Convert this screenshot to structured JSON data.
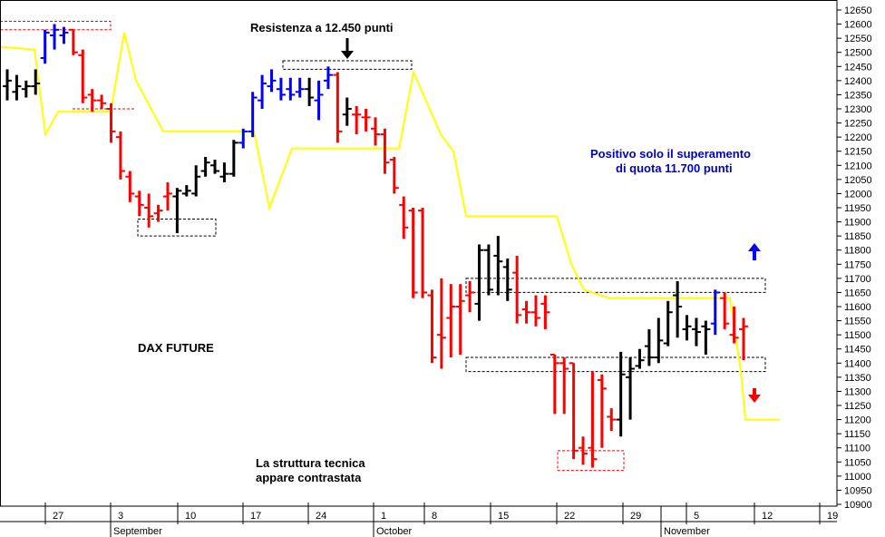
{
  "chart_data": {
    "type": "ohlc",
    "title": "DAX FUTURE",
    "y_axis": {
      "min": 10900,
      "max": 12650,
      "step": 50,
      "ticks": [
        12650,
        12600,
        12550,
        12500,
        12450,
        12400,
        12350,
        12300,
        12250,
        12200,
        12150,
        12100,
        12050,
        12000,
        11950,
        11900,
        11850,
        11800,
        11750,
        11700,
        11650,
        11600,
        11550,
        11500,
        11450,
        11400,
        11350,
        11300,
        11250,
        11200,
        11150,
        11100,
        11050,
        11000,
        10950,
        10900
      ]
    },
    "x_axis": {
      "day_labels": [
        "27",
        "3",
        "10",
        "17",
        "24",
        "1",
        "8",
        "15",
        "22",
        "29",
        "5",
        "12",
        "19"
      ],
      "month_labels": [
        "September",
        "October",
        "November"
      ]
    },
    "bars": [
      {
        "o": 12380,
        "h": 12440,
        "l": 12330,
        "c": 12400,
        "color": "black"
      },
      {
        "o": 12360,
        "h": 12420,
        "l": 12330,
        "c": 12380,
        "color": "black"
      },
      {
        "o": 12370,
        "h": 12400,
        "l": 12340,
        "c": 12380,
        "color": "black"
      },
      {
        "o": 12380,
        "h": 12440,
        "l": 12350,
        "c": 12390,
        "color": "black"
      },
      {
        "o": 12480,
        "h": 12580,
        "l": 12460,
        "c": 12570,
        "color": "blue"
      },
      {
        "o": 12560,
        "h": 12600,
        "l": 12510,
        "c": 12580,
        "color": "blue"
      },
      {
        "o": 12560,
        "h": 12590,
        "l": 12530,
        "c": 12570,
        "color": "blue"
      },
      {
        "o": 12580,
        "h": 12580,
        "l": 12490,
        "c": 12500,
        "color": "red"
      },
      {
        "o": 12490,
        "h": 12510,
        "l": 12320,
        "c": 12340,
        "color": "red"
      },
      {
        "o": 12350,
        "h": 12370,
        "l": 12290,
        "c": 12330,
        "color": "red"
      },
      {
        "o": 12330,
        "h": 12350,
        "l": 12300,
        "c": 12320,
        "color": "red"
      },
      {
        "o": 12300,
        "h": 12320,
        "l": 12180,
        "c": 12220,
        "color": "red"
      },
      {
        "o": 12200,
        "h": 12220,
        "l": 12050,
        "c": 12080,
        "color": "red"
      },
      {
        "o": 12060,
        "h": 12080,
        "l": 11970,
        "c": 12000,
        "color": "red"
      },
      {
        "o": 11990,
        "h": 12010,
        "l": 11920,
        "c": 11960,
        "color": "red"
      },
      {
        "o": 11950,
        "h": 12000,
        "l": 11880,
        "c": 11920,
        "color": "red"
      },
      {
        "o": 11930,
        "h": 11960,
        "l": 11900,
        "c": 11940,
        "color": "red"
      },
      {
        "o": 11990,
        "h": 12040,
        "l": 11940,
        "c": 12000,
        "color": "red"
      },
      {
        "o": 11990,
        "h": 12020,
        "l": 11860,
        "c": 12010,
        "color": "black"
      },
      {
        "o": 12000,
        "h": 12030,
        "l": 11990,
        "c": 12010,
        "color": "black"
      },
      {
        "o": 12000,
        "h": 12100,
        "l": 11990,
        "c": 12060,
        "color": "black"
      },
      {
        "o": 12080,
        "h": 12130,
        "l": 12060,
        "c": 12110,
        "color": "black"
      },
      {
        "o": 12100,
        "h": 12120,
        "l": 12070,
        "c": 12080,
        "color": "black"
      },
      {
        "o": 12060,
        "h": 12110,
        "l": 12040,
        "c": 12070,
        "color": "black"
      },
      {
        "o": 12070,
        "h": 12190,
        "l": 12060,
        "c": 12180,
        "color": "black"
      },
      {
        "o": 12180,
        "h": 12230,
        "l": 12160,
        "c": 12220,
        "color": "blue"
      },
      {
        "o": 12220,
        "h": 12360,
        "l": 12200,
        "c": 12340,
        "color": "blue"
      },
      {
        "o": 12330,
        "h": 12420,
        "l": 12300,
        "c": 12390,
        "color": "blue"
      },
      {
        "o": 12380,
        "h": 12440,
        "l": 12360,
        "c": 12400,
        "color": "blue"
      },
      {
        "o": 12370,
        "h": 12410,
        "l": 12330,
        "c": 12350,
        "color": "blue"
      },
      {
        "o": 12370,
        "h": 12410,
        "l": 12330,
        "c": 12350,
        "color": "blue"
      },
      {
        "o": 12360,
        "h": 12410,
        "l": 12340,
        "c": 12370,
        "color": "blue"
      },
      {
        "o": 12370,
        "h": 12410,
        "l": 12310,
        "c": 12340,
        "color": "black"
      },
      {
        "o": 12330,
        "h": 12400,
        "l": 12260,
        "c": 12350,
        "color": "blue"
      },
      {
        "o": 12400,
        "h": 12450,
        "l": 12370,
        "c": 12420,
        "color": "blue"
      },
      {
        "o": 12420,
        "h": 12430,
        "l": 12180,
        "c": 12220,
        "color": "red"
      },
      {
        "o": 12280,
        "h": 12340,
        "l": 12240,
        "c": 12300,
        "color": "black"
      },
      {
        "o": 12280,
        "h": 12310,
        "l": 12210,
        "c": 12280,
        "color": "red"
      },
      {
        "o": 12270,
        "h": 12300,
        "l": 12220,
        "c": 12270,
        "color": "red"
      },
      {
        "o": 12230,
        "h": 12270,
        "l": 12170,
        "c": 12210,
        "color": "red"
      },
      {
        "o": 12210,
        "h": 12230,
        "l": 12070,
        "c": 12110,
        "color": "red"
      },
      {
        "o": 12120,
        "h": 12130,
        "l": 12000,
        "c": 12020,
        "color": "red"
      },
      {
        "o": 11960,
        "h": 11990,
        "l": 11840,
        "c": 11880,
        "color": "red"
      },
      {
        "o": 11940,
        "h": 11950,
        "l": 11630,
        "c": 11650,
        "color": "red"
      },
      {
        "o": 11940,
        "h": 11950,
        "l": 11630,
        "c": 11650,
        "color": "red"
      },
      {
        "o": 11640,
        "h": 11660,
        "l": 11400,
        "c": 11420,
        "color": "red"
      },
      {
        "o": 11500,
        "h": 11700,
        "l": 11380,
        "c": 11490,
        "color": "red"
      },
      {
        "o": 11560,
        "h": 11680,
        "l": 11420,
        "c": 11600,
        "color": "red"
      },
      {
        "o": 11600,
        "h": 11680,
        "l": 11430,
        "c": 11620,
        "color": "red"
      },
      {
        "o": 11640,
        "h": 11690,
        "l": 11580,
        "c": 11650,
        "color": "red"
      },
      {
        "o": 11610,
        "h": 11820,
        "l": 11550,
        "c": 11800,
        "color": "black"
      },
      {
        "o": 11800,
        "h": 11820,
        "l": 11640,
        "c": 11660,
        "color": "black"
      },
      {
        "o": 11780,
        "h": 11850,
        "l": 11640,
        "c": 11760,
        "color": "black"
      },
      {
        "o": 11740,
        "h": 11770,
        "l": 11620,
        "c": 11660,
        "color": "black"
      },
      {
        "o": 11720,
        "h": 11780,
        "l": 11540,
        "c": 11570,
        "color": "red"
      },
      {
        "o": 11590,
        "h": 11620,
        "l": 11540,
        "c": 11580,
        "color": "red"
      },
      {
        "o": 11580,
        "h": 11640,
        "l": 11530,
        "c": 11560,
        "color": "red"
      },
      {
        "o": 11610,
        "h": 11640,
        "l": 11520,
        "c": 11580,
        "color": "red"
      },
      {
        "o": 11430,
        "h": 11430,
        "l": 11220,
        "c": 11400,
        "color": "red"
      },
      {
        "o": 11400,
        "h": 11420,
        "l": 11220,
        "c": 11380,
        "color": "red"
      },
      {
        "o": 11400,
        "h": 11400,
        "l": 11060,
        "c": 11090,
        "color": "red"
      },
      {
        "o": 11100,
        "h": 11140,
        "l": 11040,
        "c": 11080,
        "color": "red"
      },
      {
        "o": 11100,
        "h": 11370,
        "l": 11030,
        "c": 11060,
        "color": "red"
      },
      {
        "o": 11340,
        "h": 11360,
        "l": 11100,
        "c": 11310,
        "color": "red"
      },
      {
        "o": 11210,
        "h": 11240,
        "l": 11160,
        "c": 11200,
        "color": "red"
      },
      {
        "o": 11200,
        "h": 11440,
        "l": 11140,
        "c": 11360,
        "color": "black"
      },
      {
        "o": 11350,
        "h": 11420,
        "l": 11200,
        "c": 11380,
        "color": "black"
      },
      {
        "o": 11390,
        "h": 11450,
        "l": 11380,
        "c": 11410,
        "color": "black"
      },
      {
        "o": 11460,
        "h": 11520,
        "l": 11390,
        "c": 11420,
        "color": "black"
      },
      {
        "o": 11420,
        "h": 11560,
        "l": 11400,
        "c": 11480,
        "color": "black"
      },
      {
        "o": 11470,
        "h": 11620,
        "l": 11460,
        "c": 11580,
        "color": "black"
      },
      {
        "o": 11640,
        "h": 11690,
        "l": 11490,
        "c": 11600,
        "color": "black"
      },
      {
        "o": 11520,
        "h": 11570,
        "l": 11480,
        "c": 11530,
        "color": "black"
      },
      {
        "o": 11520,
        "h": 11560,
        "l": 11460,
        "c": 11510,
        "color": "black"
      },
      {
        "o": 11530,
        "h": 11550,
        "l": 11430,
        "c": 11520,
        "color": "black"
      },
      {
        "o": 11540,
        "h": 11660,
        "l": 11500,
        "c": 11650,
        "color": "blue"
      },
      {
        "o": 11630,
        "h": 11650,
        "l": 11520,
        "c": 11540,
        "color": "red"
      },
      {
        "o": 11500,
        "h": 11600,
        "l": 11470,
        "c": 11490,
        "color": "red"
      },
      {
        "o": 11520,
        "h": 11560,
        "l": 11410,
        "c": 11530,
        "color": "red"
      }
    ],
    "yellow_line": [
      {
        "x": 0,
        "y": 12520
      },
      {
        "x": 38,
        "y": 12510
      },
      {
        "x": 50,
        "y": 12210
      },
      {
        "x": 64,
        "y": 12290
      },
      {
        "x": 122,
        "y": 12290
      },
      {
        "x": 137,
        "y": 12570
      },
      {
        "x": 150,
        "y": 12400
      },
      {
        "x": 180,
        "y": 12220
      },
      {
        "x": 280,
        "y": 12220
      },
      {
        "x": 297,
        "y": 11950
      },
      {
        "x": 322,
        "y": 12160
      },
      {
        "x": 440,
        "y": 12160
      },
      {
        "x": 456,
        "y": 12430
      },
      {
        "x": 486,
        "y": 12210
      },
      {
        "x": 500,
        "y": 12150
      },
      {
        "x": 514,
        "y": 11920
      },
      {
        "x": 614,
        "y": 11920
      },
      {
        "x": 630,
        "y": 11750
      },
      {
        "x": 644,
        "y": 11660
      },
      {
        "x": 672,
        "y": 11630
      },
      {
        "x": 805,
        "y": 11630
      },
      {
        "x": 817,
        "y": 11370
      },
      {
        "x": 822,
        "y": 11200
      },
      {
        "x": 860,
        "y": 11200
      }
    ],
    "zones": [
      {
        "name": "top-left-resistance",
        "x0": 0,
        "x1": 122,
        "y0": 12610,
        "y1": 12580,
        "color": "red"
      },
      {
        "name": "sep-low",
        "x0": 152,
        "x1": 238,
        "y0": 11910,
        "y1": 11850,
        "color": "black"
      },
      {
        "name": "resistance-12450",
        "x0": 312,
        "x1": 454,
        "y0": 12470,
        "y1": 12440,
        "color": "black"
      },
      {
        "name": "red-dashed-12300",
        "x0": 80,
        "x1": 150,
        "y0": 12300,
        "y1": 12300,
        "color": "red"
      },
      {
        "name": "upper-range",
        "x0": 514,
        "x1": 844,
        "y0": 11700,
        "y1": 11650,
        "color": "black"
      },
      {
        "name": "lower-range",
        "x0": 514,
        "x1": 844,
        "y0": 11420,
        "y1": 11370,
        "color": "black"
      },
      {
        "name": "october-low",
        "x0": 615,
        "x1": 688,
        "y0": 11090,
        "y1": 11020,
        "color": "red"
      }
    ],
    "annotations": {
      "resistance": "Resistenza a 12.450 punti",
      "positive_line1": "Positivo solo il superamento",
      "positive_line2": "di quota 11.700 punti",
      "structure_line1": "La struttura tecnica",
      "structure_line2": "appare contrastata"
    },
    "colors": {
      "up": "#0000ff",
      "down": "#ff0000",
      "neutral": "#000000",
      "yellow_line": "#ffff00",
      "annotation_blue": "#0000cc"
    }
  }
}
